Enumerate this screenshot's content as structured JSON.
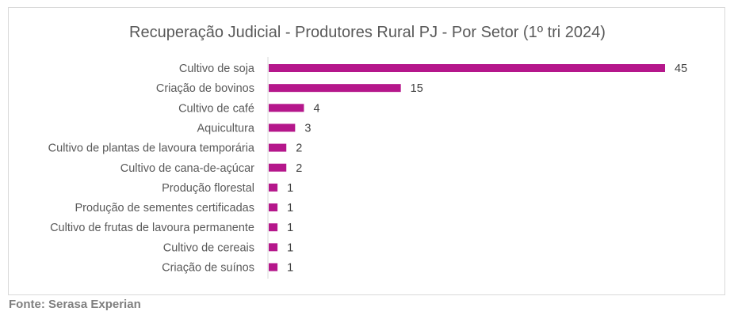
{
  "chart_data": {
    "type": "bar",
    "orientation": "horizontal",
    "title": "Recuperação Judicial - Produtores Rural PJ - Por Setor (1º tri 2024)",
    "categories": [
      "Cultivo de soja",
      "Criação de bovinos",
      "Cultivo de café",
      "Aquicultura",
      "Cultivo de plantas de lavoura temporária",
      "Cultivo de cana-de-açúcar",
      "Produção florestal",
      "Produção de sementes certificadas",
      "Cultivo de frutas de lavoura permanente",
      "Cultivo de cereais",
      "Criação de suínos"
    ],
    "values": [
      45,
      15,
      4,
      3,
      2,
      2,
      1,
      1,
      1,
      1,
      1
    ],
    "xlim": [
      0,
      45
    ],
    "grid": false,
    "legend": "none",
    "bar_color": "#b5178b"
  },
  "source": "Fonte: Serasa Experian"
}
